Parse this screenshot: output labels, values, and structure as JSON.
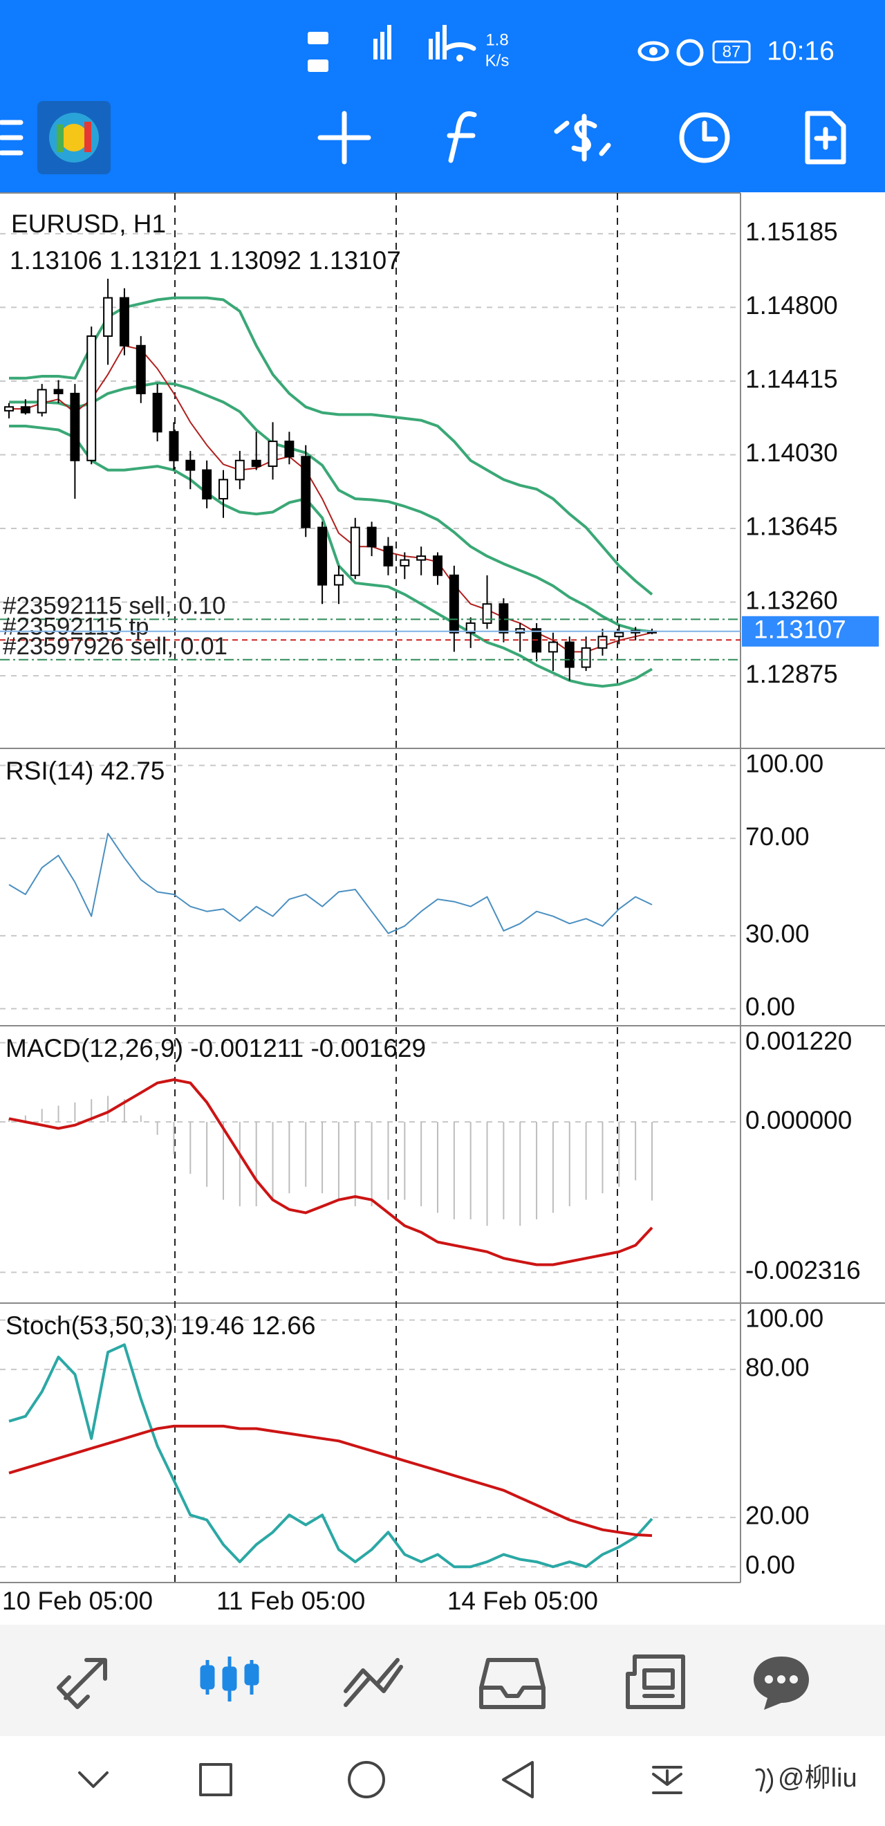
{
  "status_bar": {
    "speed": "1.8",
    "speed_unit": "K/s",
    "battery": "87",
    "time": "10:16"
  },
  "chart_data": [
    {
      "type": "candlestick",
      "title": "EURUSD, H1",
      "subtitle": "1.13106 1.13121 1.13092 1.13107",
      "categories": [
        "10 Feb 05:00",
        null,
        null,
        null,
        null,
        null,
        null,
        null,
        null,
        null,
        null,
        null,
        null,
        "11 Feb 05:00",
        null,
        null,
        null,
        null,
        null,
        null,
        null,
        null,
        null,
        null,
        null,
        null,
        null,
        "14 Feb 05:00",
        null,
        null,
        null,
        null,
        null,
        null,
        null,
        null,
        null,
        null,
        null,
        null
      ],
      "open": [
        1.1426,
        1.1428,
        1.1425,
        1.1437,
        1.1435,
        1.14,
        1.1465,
        1.1485,
        1.146,
        1.1435,
        1.1415,
        1.14,
        1.1395,
        1.138,
        1.139,
        1.14,
        1.1397,
        1.141,
        1.1402,
        1.1365,
        1.1335,
        1.134,
        1.1365,
        1.1355,
        1.1345,
        1.1348,
        1.135,
        1.134,
        1.131,
        1.1315,
        1.1325,
        1.131,
        1.1312,
        1.13,
        1.1305,
        1.1292,
        1.1302,
        1.1308,
        1.131,
        1.13106
      ],
      "high": [
        1.143,
        1.1432,
        1.144,
        1.1442,
        1.144,
        1.147,
        1.1495,
        1.149,
        1.1465,
        1.144,
        1.142,
        1.1405,
        1.14,
        1.1395,
        1.1405,
        1.1415,
        1.142,
        1.1415,
        1.1408,
        1.1368,
        1.1345,
        1.137,
        1.1368,
        1.136,
        1.1352,
        1.1355,
        1.1352,
        1.1345,
        1.1318,
        1.134,
        1.1328,
        1.1315,
        1.1315,
        1.131,
        1.1308,
        1.1308,
        1.1312,
        1.1314,
        1.1313,
        1.13121
      ],
      "low": [
        1.1422,
        1.1424,
        1.1423,
        1.143,
        1.138,
        1.1398,
        1.145,
        1.1455,
        1.143,
        1.141,
        1.1395,
        1.1385,
        1.1375,
        1.137,
        1.1385,
        1.1395,
        1.139,
        1.1398,
        1.136,
        1.1325,
        1.1325,
        1.1338,
        1.135,
        1.134,
        1.1338,
        1.134,
        1.1335,
        1.13,
        1.1302,
        1.1312,
        1.1305,
        1.13,
        1.1295,
        1.129,
        1.1285,
        1.129,
        1.1298,
        1.1304,
        1.1306,
        1.13092
      ],
      "close": [
        1.1428,
        1.1425,
        1.1437,
        1.1435,
        1.14,
        1.1465,
        1.1485,
        1.146,
        1.1435,
        1.1415,
        1.14,
        1.1395,
        1.138,
        1.139,
        1.14,
        1.1397,
        1.141,
        1.1402,
        1.1365,
        1.1335,
        1.134,
        1.1365,
        1.1355,
        1.1345,
        1.1348,
        1.135,
        1.134,
        1.131,
        1.1315,
        1.1325,
        1.131,
        1.1312,
        1.13,
        1.1305,
        1.1292,
        1.1302,
        1.1308,
        1.131,
        1.1311,
        1.13107
      ],
      "up_color": "#ffffff",
      "down_color": "#000000",
      "series": [
        {
          "color": "#3aa876",
          "values": [
            1.1443,
            1.1443,
            1.1444,
            1.1444,
            1.1443,
            1.146,
            1.1475,
            1.148,
            1.1482,
            1.1484,
            1.1485,
            1.1485,
            1.1485,
            1.1484,
            1.1478,
            1.146,
            1.1445,
            1.1435,
            1.1428,
            1.1425,
            1.1424,
            1.1424,
            1.1424,
            1.1423,
            1.1422,
            1.1421,
            1.1418,
            1.141,
            1.14,
            1.1395,
            1.139,
            1.1387,
            1.1385,
            1.138,
            1.1372,
            1.1365,
            1.1355,
            1.1345,
            1.1337,
            1.133
          ]
        },
        {
          "color": "#3aa876",
          "values": [
            1.14305,
            1.14305,
            1.14305,
            1.143,
            1.14275,
            1.143,
            1.1435,
            1.14375,
            1.1439,
            1.14405,
            1.144,
            1.14375,
            1.1434,
            1.14305,
            1.14255,
            1.1416,
            1.1409,
            1.14065,
            1.1404,
            1.13975,
            1.13845,
            1.138,
            1.13795,
            1.13785,
            1.1376,
            1.1373,
            1.1369,
            1.13625,
            1.1355,
            1.135,
            1.1346,
            1.13425,
            1.1339,
            1.13345,
            1.13285,
            1.1324,
            1.13185,
            1.1314,
            1.13115,
            1.13105
          ]
        },
        {
          "color": "#3aa876",
          "values": [
            1.1418,
            1.1418,
            1.1417,
            1.1416,
            1.1412,
            1.14,
            1.1395,
            1.1395,
            1.1396,
            1.1397,
            1.1395,
            1.139,
            1.1383,
            1.1377,
            1.1373,
            1.1372,
            1.1373,
            1.1378,
            1.138,
            1.137,
            1.1345,
            1.1336,
            1.1335,
            1.1334,
            1.133,
            1.1325,
            1.132,
            1.1315,
            1.131,
            1.1305,
            1.1302,
            1.1298,
            1.1293,
            1.1289,
            1.1285,
            1.1283,
            1.1282,
            1.1283,
            1.1286,
            1.1291
          ]
        },
        {
          "color": "#b0201e",
          "values": [
            1.1427,
            1.1427,
            1.143,
            1.1432,
            1.1425,
            1.1432,
            1.1445,
            1.146,
            1.1458,
            1.1448,
            1.1435,
            1.142,
            1.1408,
            1.1398,
            1.1395,
            1.1396,
            1.14,
            1.1402,
            1.1395,
            1.138,
            1.1362,
            1.1355,
            1.1355,
            1.1352,
            1.135,
            1.1349,
            1.1347,
            1.1335,
            1.1325,
            1.1322,
            1.1318,
            1.1315,
            1.131,
            1.1306,
            1.13,
            1.13,
            1.1303,
            1.1306,
            1.1308,
            1.131
          ]
        }
      ],
      "orders": [
        {
          "label": "#23592115 sell, 0.10",
          "value": 1.1317,
          "color": "#2e8b57"
        },
        {
          "label": "#23592115 tp",
          "value": 1.13062,
          "color": "#cc2222"
        },
        {
          "label": "#23597926 sell, 0.01",
          "value": 1.12959,
          "color": "#2e8b57"
        }
      ],
      "last_price": 1.13107,
      "last_price_color": "#2f8bff",
      "ylim": [
        1.12499,
        1.15398
      ],
      "yticks": [
        {
          "value": 1.15185,
          "label": "1.15185"
        },
        {
          "value": 1.148,
          "label": "1.14800"
        },
        {
          "value": 1.14415,
          "label": "1.14415"
        },
        {
          "value": 1.1403,
          "label": "1.14030"
        },
        {
          "value": 1.13645,
          "label": "1.13645"
        },
        {
          "value": 1.1326,
          "label": "1.13260"
        },
        {
          "value": 1.12875,
          "label": "1.12875"
        }
      ],
      "grid": true
    },
    {
      "type": "line",
      "title": "RSI(14) 42.75",
      "color": "#4a8fc0",
      "values": [
        51,
        47,
        58,
        63,
        52,
        38,
        72,
        62,
        53,
        48,
        47,
        42,
        40,
        41,
        36,
        42,
        38,
        45,
        47,
        42,
        48,
        49,
        40,
        31,
        34,
        40,
        45,
        44,
        42,
        46,
        32,
        35,
        40,
        38,
        35,
        37,
        34,
        41,
        46,
        42.75
      ],
      "ylim": [
        -6.7,
        106.7
      ],
      "yticks": [
        {
          "value": 100,
          "label": "100.00"
        },
        {
          "value": 70,
          "label": "70.00"
        },
        {
          "value": 30,
          "label": "30.00"
        },
        {
          "value": 0,
          "label": "0.00"
        }
      ],
      "grid": true
    },
    {
      "type": "line",
      "title": "MACD(12,26,9) -0.001211 -0.001629",
      "series": [
        {
          "style": "histogram",
          "color": "#bdbdbd",
          "values": [
            5e-05,
            0.0001,
            0.0002,
            0.00025,
            0.0003,
            0.00035,
            0.0004,
            0.00035,
            0.0001,
            -0.0002,
            -0.0005,
            -0.0008,
            -0.001,
            -0.0012,
            -0.0013,
            -0.0013,
            -0.0012,
            -0.0011,
            -0.001,
            -0.0011,
            -0.0012,
            -0.0013,
            -0.0013,
            -0.0012,
            -0.0012,
            -0.0013,
            -0.0014,
            -0.0015,
            -0.0015,
            -0.0016,
            -0.0015,
            -0.0016,
            -0.0015,
            -0.0014,
            -0.0013,
            -0.0012,
            -0.0011,
            -0.001,
            -0.0009,
            -0.001211
          ]
        },
        {
          "style": "line",
          "color": "#cc1414",
          "values": [
            5e-05,
            0,
            -5e-05,
            -0.0001,
            -5e-05,
            5e-05,
            0.00015,
            0.0003,
            0.00045,
            0.0006,
            0.00065,
            0.0006,
            0.0003,
            -0.0001,
            -0.0005,
            -0.0009,
            -0.0012,
            -0.00135,
            -0.0014,
            -0.0013,
            -0.0012,
            -0.00115,
            -0.0012,
            -0.0014,
            -0.0016,
            -0.0017,
            -0.00185,
            -0.0019,
            -0.00195,
            -0.002,
            -0.0021,
            -0.00215,
            -0.0022,
            -0.0022,
            -0.00215,
            -0.0021,
            -0.00205,
            -0.002,
            -0.0019,
            -0.001629
          ]
        }
      ],
      "ylim": [
        -0.00278,
        0.00147
      ],
      "yticks": [
        {
          "value": 0.00122,
          "label": "0.001220"
        },
        {
          "value": 0,
          "label": "0.000000"
        },
        {
          "value": -0.002316,
          "label": "-0.002316"
        }
      ],
      "grid": true
    },
    {
      "type": "line",
      "title": "Stoch(53,50,3) 19.46 12.66",
      "series": [
        {
          "style": "line",
          "color": "#2ba8a5",
          "values": [
            59,
            61,
            71,
            85,
            78,
            52,
            87,
            90,
            68,
            49,
            35,
            21,
            19,
            9,
            2,
            9,
            14,
            21,
            17,
            21,
            7,
            2,
            7,
            14,
            5,
            2,
            5,
            0,
            0,
            2,
            5,
            3,
            2,
            0,
            2,
            0,
            5,
            8,
            12,
            19.46
          ]
        },
        {
          "style": "line",
          "color": "#cc1414",
          "values": [
            38,
            40,
            42,
            44,
            46,
            48,
            50,
            52,
            54,
            56,
            57,
            57,
            57,
            57,
            56,
            56,
            55,
            54,
            53,
            52,
            51,
            49,
            47,
            45,
            43,
            41,
            39,
            37,
            35,
            33,
            31,
            28,
            25,
            22,
            19,
            17,
            15,
            14,
            13,
            12.66
          ]
        }
      ],
      "ylim": [
        -6.1,
        106.6
      ],
      "yticks": [
        {
          "value": 100,
          "label": "100.00"
        },
        {
          "value": 80,
          "label": "80.00"
        },
        {
          "value": 20,
          "label": "20.00"
        },
        {
          "value": 0,
          "label": "0.00"
        }
      ],
      "grid": true
    }
  ],
  "watermark": "@柳liu"
}
